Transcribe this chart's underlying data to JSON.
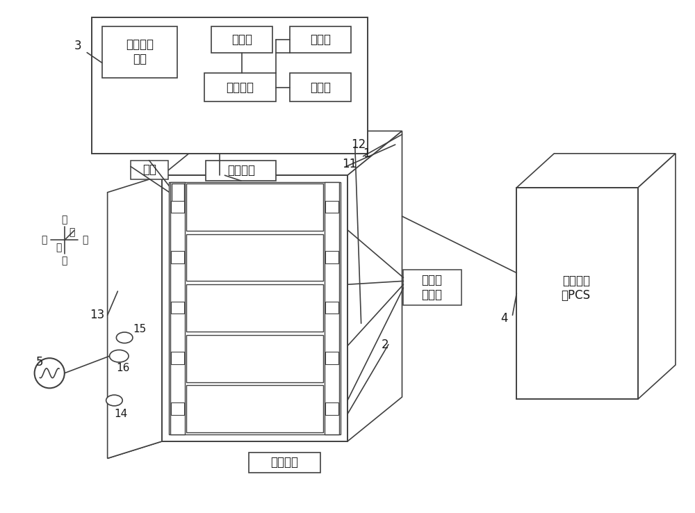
{
  "bg_color": "#ffffff",
  "line_color": "#404040",
  "font_color": "#1a1a1a",
  "labels": {
    "dianliuguanli": "电流管理\n装置",
    "chuliqi": "处理器",
    "zhukongxinpian": "主控芯片",
    "cunchuzhi": "存储器",
    "caijizhi": "采集器",
    "dieryiqiangti": "第二腔体",
    "diyiqiangti": "第一腔体",
    "fengshan": "风扇",
    "dianzikaizhuan": "电子开\n关组件",
    "chunengbianliu": "储能变流\n器PCS",
    "ref_1": "1",
    "ref_2": "2",
    "ref_3": "3",
    "ref_4": "4",
    "ref_5": "5",
    "ref_11": "11",
    "ref_12": "12",
    "ref_13": "13",
    "ref_14": "14",
    "ref_15": "15",
    "ref_16": "16"
  }
}
